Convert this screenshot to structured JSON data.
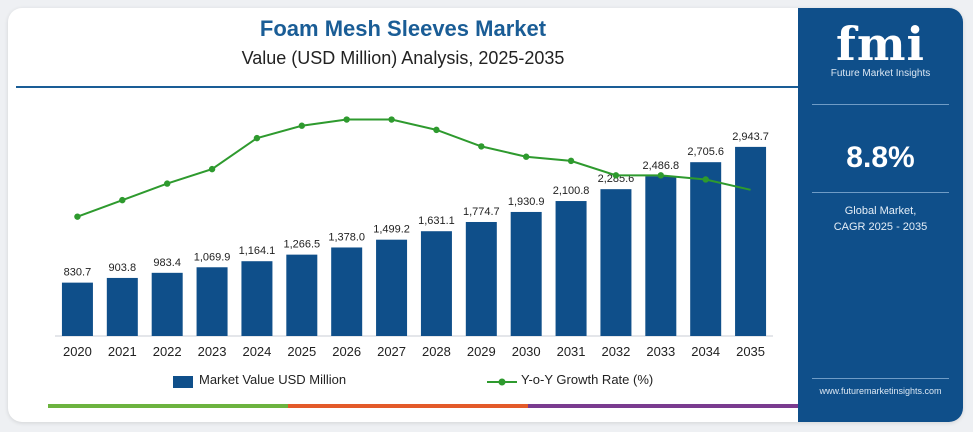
{
  "header": {
    "title": "Foam Mesh Sleeves Market",
    "subtitle": "Value (USD Million) Analysis, 2025-2035"
  },
  "sidebar": {
    "logo_text": "fmi",
    "logo_caption": "Future Market Insights",
    "cagr_value": "8.8%",
    "cagr_label_line1": "Global Market,",
    "cagr_label_line2": "CAGR 2025 - 2035",
    "website": "www.futuremarketinsights.com"
  },
  "colors": {
    "bar": "#0f4f8a",
    "line": "#2e9a2e",
    "title": "#1a5d96",
    "sidebar": "#0f4f8a",
    "strip": [
      "#6cb33f",
      "#e35a2a",
      "#7a3b8f",
      "#1a5d96"
    ]
  },
  "legend": {
    "bars_label": "Market Value USD Million",
    "line_label": "Y-o-Y Growth Rate (%)"
  },
  "chart_data": {
    "type": "bar",
    "categories": [
      "2020",
      "2021",
      "2022",
      "2023",
      "2024",
      "2025",
      "2026",
      "2027",
      "2028",
      "2029",
      "2030",
      "2031",
      "2032",
      "2033",
      "2034",
      "2035"
    ],
    "series": [
      {
        "name": "Market Value USD Million",
        "values": [
          830.7,
          903.8,
          983.4,
          1069.9,
          1164.1,
          1266.5,
          1378.0,
          1499.2,
          1631.1,
          1774.7,
          1930.9,
          2100.8,
          2285.6,
          2486.8,
          2705.6,
          2943.7
        ],
        "labels": [
          "830.7",
          "903.8",
          "983.4",
          "1,069.9",
          "1,164.1",
          "1,266.5",
          "1,378.0",
          "1,499.2",
          "1,631.1",
          "1,774.7",
          "1,930.9",
          "2,100.8",
          "2,285.6",
          "2,486.8",
          "2,705.6",
          "2,943.7"
        ]
      },
      {
        "name": "Y-o-Y Growth Rate (%)",
        "type": "line",
        "values": [
          7.0,
          7.8,
          8.6,
          9.3,
          10.8,
          11.4,
          11.7,
          11.7,
          11.2,
          10.4,
          9.9,
          9.7,
          9.0,
          9.0,
          8.8,
          8.3
        ]
      }
    ],
    "ylim": [
      0,
      3300
    ],
    "line_ylim": [
      0,
      15
    ],
    "legend_position": "bottom",
    "grid": false
  }
}
